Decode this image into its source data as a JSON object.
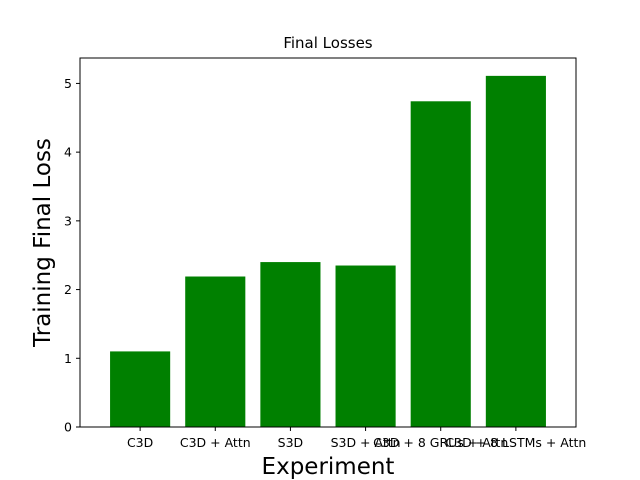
{
  "chart_data": {
    "type": "bar",
    "title": "Final Losses",
    "xlabel": "Experiment",
    "ylabel": "Training Final Loss",
    "categories": [
      "C3D",
      "C3D + Attn",
      "S3D",
      "S3D + Attn",
      "C3D + 8 GRUs + Attn",
      "C3D + 8 LSTMs + Attn"
    ],
    "values": [
      1.1,
      2.19,
      2.4,
      2.35,
      4.74,
      5.11
    ],
    "ylim": [
      0,
      5.37
    ],
    "yticks": [
      0,
      1,
      2,
      3,
      4,
      5
    ],
    "bar_color": "#008000",
    "grid": false,
    "legend": false
  }
}
